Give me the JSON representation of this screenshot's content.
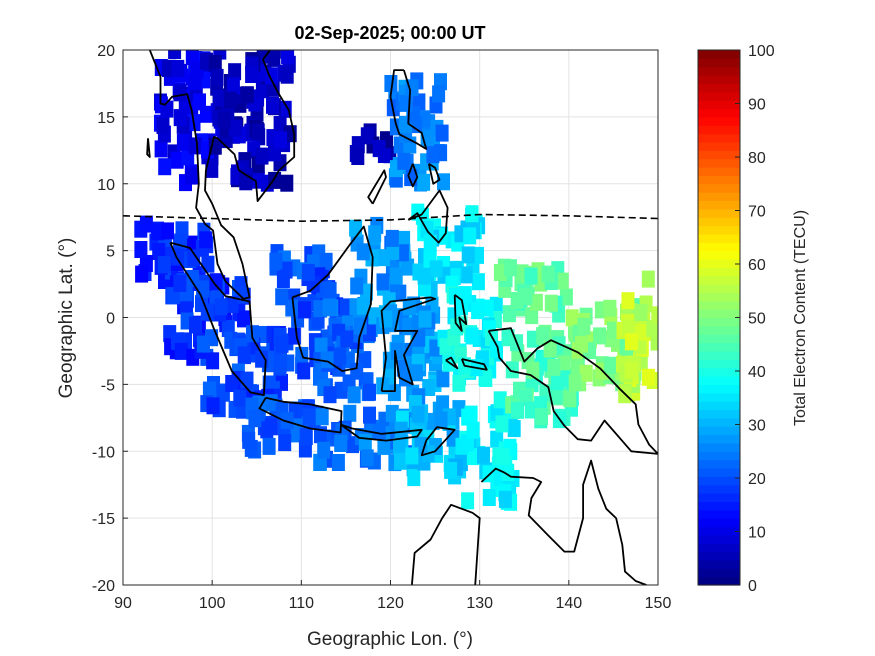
{
  "chart_data": {
    "type": "heatmap",
    "title": "02-Sep-2025; 00:00 UT",
    "xlabel": "Geographic Lon. (°)",
    "ylabel": "Geographic Lat. (°)",
    "xlim": [
      90,
      150
    ],
    "ylim": [
      -20,
      20
    ],
    "xticks": [
      "90",
      "100",
      "110",
      "120",
      "130",
      "140",
      "150"
    ],
    "yticks": [
      "-20",
      "-15",
      "-10",
      "-5",
      "0",
      "5",
      "10",
      "15",
      "20"
    ],
    "grid": true,
    "colorbar": {
      "label": "Total Electron Content (TECU)",
      "range": [
        0,
        100
      ],
      "ticks": [
        "0",
        "10",
        "20",
        "30",
        "40",
        "50",
        "60",
        "70",
        "80",
        "90",
        "100"
      ],
      "colormap": "jet"
    },
    "tec_regions": [
      {
        "lon": [
          92,
          100
        ],
        "lat": [
          2,
          7
        ],
        "tec": 16
      },
      {
        "lon": [
          95,
          104
        ],
        "lat": [
          -3,
          3
        ],
        "tec": 17
      },
      {
        "lon": [
          99,
          108
        ],
        "lat": [
          -7,
          -1
        ],
        "tec": 19
      },
      {
        "lon": [
          103,
          112
        ],
        "lat": [
          -10,
          -6
        ],
        "tec": 21
      },
      {
        "lon": [
          107,
          114
        ],
        "lat": [
          -4,
          5
        ],
        "tec": 20
      },
      {
        "lon": [
          112,
          118
        ],
        "lat": [
          -6,
          1
        ],
        "tec": 22
      },
      {
        "lon": [
          112,
          122
        ],
        "lat": [
          -11,
          -7
        ],
        "tec": 24
      },
      {
        "lon": [
          116,
          122
        ],
        "lat": [
          -1,
          7
        ],
        "tec": 27
      },
      {
        "lon": [
          119,
          126
        ],
        "lat": [
          -6,
          1
        ],
        "tec": 28
      },
      {
        "lon": [
          121,
          128
        ],
        "lat": [
          -12,
          -6
        ],
        "tec": 31
      },
      {
        "lon": [
          123,
          130
        ],
        "lat": [
          2,
          8
        ],
        "tec": 35
      },
      {
        "lon": [
          126,
          132
        ],
        "lat": [
          -5,
          2
        ],
        "tec": 38
      },
      {
        "lon": [
          128,
          134
        ],
        "lat": [
          -14,
          -6
        ],
        "tec": 36
      },
      {
        "lon": [
          132,
          140
        ],
        "lat": [
          0,
          4
        ],
        "tec": 47
      },
      {
        "lon": [
          133,
          141
        ],
        "lat": [
          -8,
          -1
        ],
        "tec": 45
      },
      {
        "lon": [
          140,
          148
        ],
        "lat": [
          -5,
          1
        ],
        "tec": 50
      },
      {
        "lon": [
          146,
          150
        ],
        "lat": [
          -6,
          3
        ],
        "tec": 56
      },
      {
        "lon": [
          94,
          100
        ],
        "lat": [
          10,
          20
        ],
        "tec": 10
      },
      {
        "lon": [
          100,
          109
        ],
        "lat": [
          10,
          20
        ],
        "tec": 6
      },
      {
        "lon": [
          116,
          120
        ],
        "lat": [
          12,
          14
        ],
        "tec": 5
      },
      {
        "lon": [
          120,
          126
        ],
        "lat": [
          10,
          18
        ],
        "tec": 25
      }
    ],
    "equator_line": {
      "lon": [
        90,
        100,
        110,
        120,
        130,
        140,
        150
      ],
      "lat": [
        7.6,
        7.4,
        7.2,
        7.3,
        7.7,
        7.6,
        7.4
      ]
    }
  }
}
